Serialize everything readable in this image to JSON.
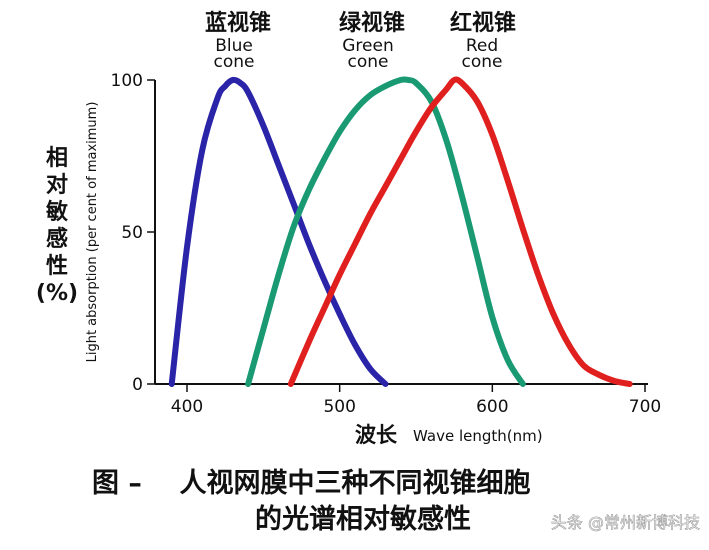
{
  "chart_data": {
    "type": "line",
    "xlabel_cn": "波长",
    "xlabel_en": "Wave length(nm)",
    "ylabel_cn": [
      "相",
      "对",
      "敏",
      "感",
      "性",
      "(%)"
    ],
    "ylabel_en": "Light absorption (per cent of maximum)",
    "xlim": [
      400,
      700
    ],
    "ylim": [
      0,
      100
    ],
    "x_ticks": [
      400,
      500,
      600,
      700
    ],
    "y_ticks": [
      0,
      50,
      100
    ],
    "grid": false,
    "series": [
      {
        "name_cn": "蓝视锥",
        "name_en_1": "Blue",
        "name_en_2": "cone",
        "color": "#2a24a8",
        "x": [
          390,
          400,
          410,
          420,
          425,
          430,
          435,
          440,
          450,
          460,
          470,
          480,
          490,
          500,
          510,
          520,
          530
        ],
        "y": [
          0,
          45,
          77,
          94,
          98,
          100,
          99,
          96,
          85,
          72,
          59,
          46,
          34,
          23,
          13,
          5,
          0
        ]
      },
      {
        "name_cn": "绿视锥",
        "name_en_1": "Green",
        "name_en_2": "cone",
        "color": "#1a9a72",
        "x": [
          440,
          450,
          460,
          470,
          480,
          490,
          500,
          510,
          520,
          530,
          540,
          545,
          550,
          560,
          570,
          580,
          590,
          600,
          610,
          620
        ],
        "y": [
          0,
          18,
          36,
          52,
          64,
          74,
          83,
          90,
          95,
          98,
          100,
          100,
          99,
          93,
          80,
          62,
          42,
          22,
          8,
          0
        ]
      },
      {
        "name_cn": "红视锥",
        "name_en_1": "Red",
        "name_en_2": "cone",
        "color": "#e01f1f",
        "x": [
          468,
          480,
          490,
          500,
          510,
          520,
          530,
          540,
          550,
          560,
          570,
          575,
          580,
          590,
          600,
          610,
          620,
          630,
          640,
          650,
          660,
          670,
          680,
          690
        ],
        "y": [
          0,
          14,
          25,
          36,
          46,
          56,
          65,
          74,
          83,
          91,
          97,
          100,
          99,
          93,
          82,
          67,
          51,
          36,
          23,
          13,
          6,
          3,
          1,
          0
        ]
      }
    ]
  },
  "caption": {
    "line1": "图 –    人视网膜中三种不同视锥细胞",
    "line2": "的光谱相对敏感性"
  },
  "watermark": "头条 @常州新博科技"
}
